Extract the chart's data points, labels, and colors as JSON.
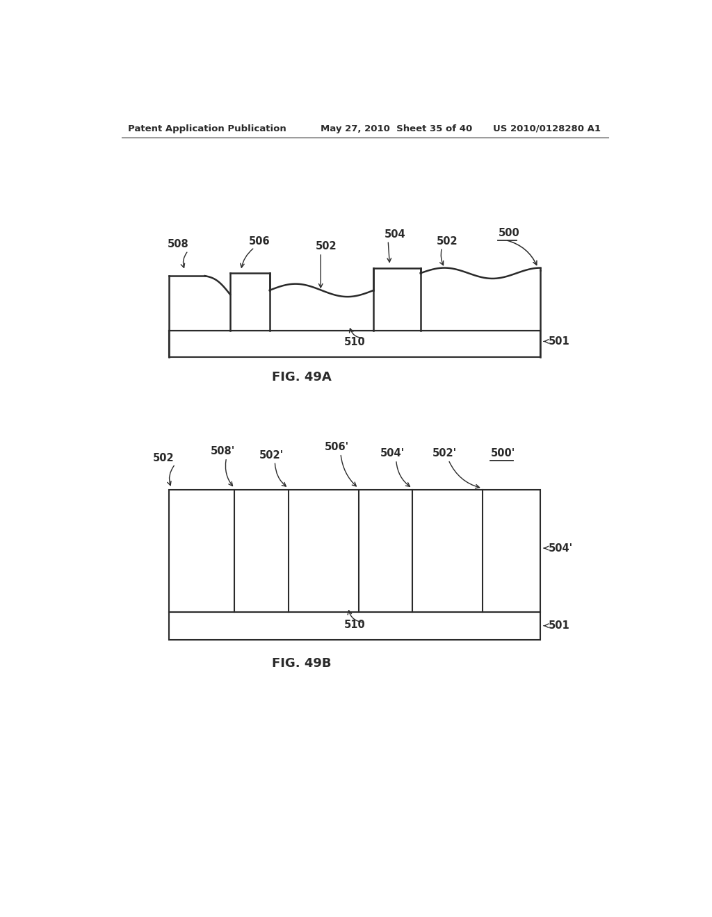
{
  "bg_color": "#ffffff",
  "header_left": "Patent Application Publication",
  "header_mid": "May 27, 2010  Sheet 35 of 40",
  "header_right": "US 2010/0128280 A1",
  "fig_a_caption": "FIG. 49A",
  "fig_b_caption": "FIG. 49B",
  "line_color": "#2a2a2a",
  "text_color": "#2a2a2a"
}
